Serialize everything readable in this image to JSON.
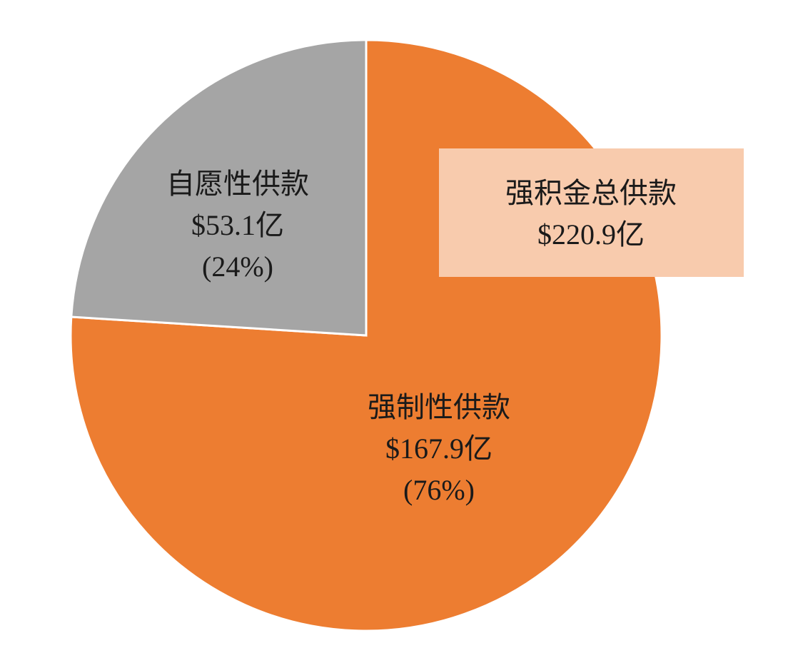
{
  "chart_data": {
    "type": "pie",
    "categories": [
      "强制性供款",
      "自愿性供款"
    ],
    "values": [
      76,
      24
    ],
    "value_labels": [
      "(76%)",
      "(24%)"
    ],
    "amounts": [
      "$167.9亿",
      "$53.1亿"
    ],
    "colors": [
      "#ed7d31",
      "#a5a5a5"
    ],
    "total_label": "强积金总供款",
    "total": "$220.9亿"
  }
}
